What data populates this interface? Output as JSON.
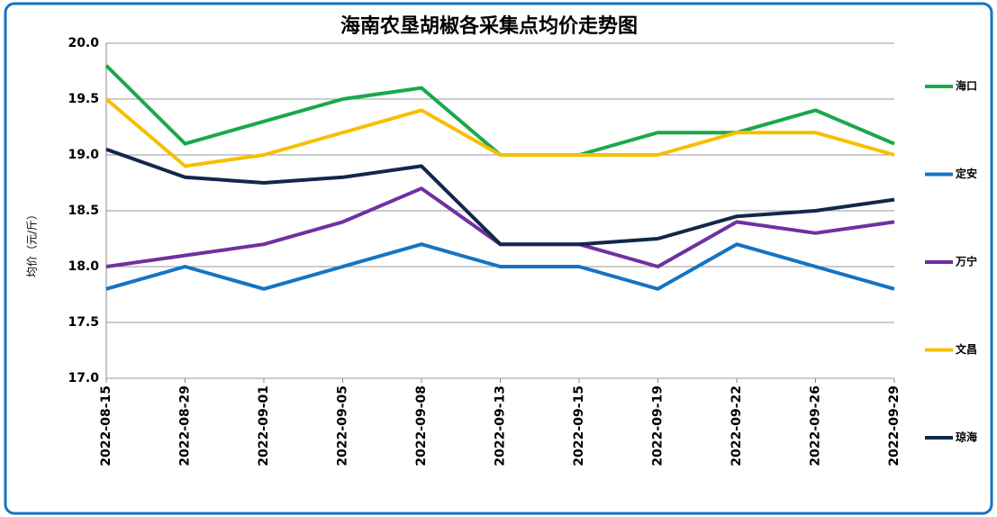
{
  "chart_data": {
    "type": "line",
    "title": "海南农垦胡椒各采集点均价走势图",
    "y_label": "均价（元/斤）",
    "categories": [
      "2022-08-15",
      "2022-08-29",
      "2022-09-01",
      "2022-09-05",
      "2022-09-08",
      "2022-09-13",
      "2022-09-15",
      "2022-09-19",
      "2022-09-22",
      "2022-09-26",
      "2022-09-29"
    ],
    "series": [
      {
        "name": "海口",
        "color": "#1aa84c",
        "values": [
          19.8,
          19.1,
          19.3,
          19.5,
          19.6,
          19.0,
          19.0,
          19.2,
          19.2,
          19.4,
          19.1
        ]
      },
      {
        "name": "定安",
        "color": "#1673c2",
        "values": [
          17.8,
          18.0,
          17.8,
          18.0,
          18.2,
          18.0,
          18.0,
          17.8,
          18.2,
          18.0,
          17.8
        ]
      },
      {
        "name": "万宁",
        "color": "#7030a0",
        "values": [
          18.0,
          18.1,
          18.2,
          18.4,
          18.7,
          18.2,
          18.2,
          18.0,
          18.4,
          18.3,
          18.4
        ]
      },
      {
        "name": "文昌",
        "color": "#f5c000",
        "values": [
          19.5,
          18.9,
          19.0,
          19.2,
          19.4,
          19.0,
          19.0,
          19.0,
          19.2,
          19.2,
          19.0
        ]
      },
      {
        "name": "琼海",
        "color": "#12284a",
        "values": [
          19.05,
          18.8,
          18.75,
          18.8,
          18.9,
          18.2,
          18.2,
          18.25,
          18.45,
          18.5,
          18.6
        ]
      }
    ],
    "ylim": [
      17,
      20
    ],
    "yticks": [
      {
        "value": 17,
        "label": "17.0"
      },
      17.5,
      {
        "value": 18,
        "label": "18.0"
      },
      18.5,
      {
        "value": 19,
        "label": "19.0"
      },
      19.5,
      {
        "value": 20,
        "label": "20.0"
      }
    ],
    "grid": true,
    "legend": "right"
  }
}
